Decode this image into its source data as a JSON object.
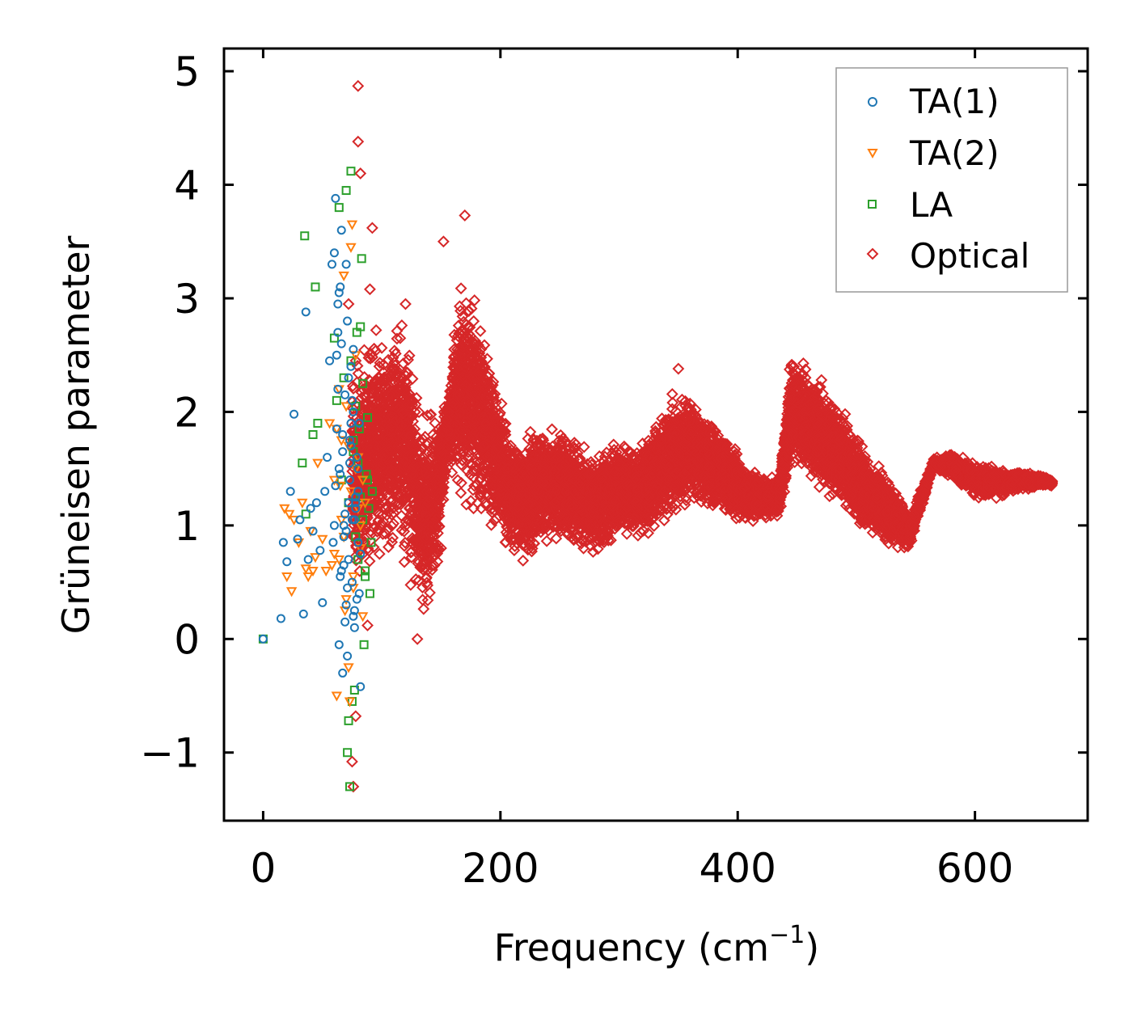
{
  "chart_data": {
    "type": "scatter",
    "xlabel": "Frequency (cm",
    "xlabel_sup": "−1",
    "xlabel_close": ")",
    "ylabel": "Grüneisen parameter",
    "xlim": [
      -33,
      695
    ],
    "ylim": [
      -1.6,
      5.2
    ],
    "xticks": [
      0,
      200,
      400,
      600
    ],
    "xtick_labels": [
      "0",
      "200",
      "400",
      "600"
    ],
    "yticks": [
      -1,
      0,
      1,
      2,
      3,
      4,
      5
    ],
    "ytick_labels": [
      "−1",
      "0",
      "1",
      "2",
      "3",
      "4",
      "5"
    ],
    "legend_position": "top-right",
    "series": [
      {
        "name": "TA(1)",
        "marker": "circle",
        "color": "#1f77b4",
        "x": [
          0,
          15,
          17,
          20,
          23,
          26,
          29,
          31,
          34,
          36,
          38,
          40,
          42,
          45,
          48,
          50,
          52,
          54,
          56,
          58,
          60,
          61,
          62,
          63,
          64,
          65,
          66,
          67,
          68,
          69,
          70,
          71,
          72,
          73,
          74,
          75,
          76,
          77,
          78,
          79,
          80,
          81,
          82,
          64,
          66,
          68,
          70,
          72,
          74,
          76,
          78,
          80,
          65,
          67,
          69,
          71,
          73,
          75,
          77,
          63,
          62,
          66,
          70,
          74,
          78,
          82,
          61,
          65,
          69,
          73,
          77,
          81,
          60,
          64,
          68,
          72,
          76,
          80,
          59,
          63,
          67,
          71,
          75,
          79
        ],
        "y": [
          0.0,
          0.18,
          0.85,
          0.68,
          1.3,
          1.98,
          0.88,
          1.05,
          0.22,
          2.88,
          0.7,
          1.15,
          0.95,
          1.2,
          0.78,
          0.32,
          1.3,
          1.6,
          2.45,
          3.3,
          3.4,
          3.88,
          2.5,
          2.2,
          1.5,
          3.1,
          2.6,
          1.8,
          0.9,
          1.1,
          3.3,
          2.8,
          2.3,
          1.4,
          1.9,
          0.5,
          0.2,
          0.1,
          1.2,
          1.6,
          1.3,
          0.4,
          -0.42,
          -0.05,
          0.6,
          1.0,
          0.3,
          0.7,
          1.7,
          2.0,
          1.25,
          0.85,
          1.45,
          -0.3,
          0.15,
          0.45,
          1.55,
          2.1,
          1.05,
          2.7,
          1.85,
          3.6,
          0.95,
          2.4,
          1.15,
          0.75,
          1.35,
          0.55,
          2.15,
          1.75,
          0.25,
          1.9,
          1.0,
          3.05,
          0.65,
          1.2,
          2.55,
          1.5,
          0.85,
          2.95,
          1.65,
          -0.15,
          1.05,
          0.35
        ]
      },
      {
        "name": "TA(2)",
        "marker": "triangle",
        "color": "#ff7f0e",
        "x": [
          18,
          20,
          22,
          24,
          26,
          30,
          33,
          36,
          38,
          40,
          42,
          44,
          46,
          50,
          53,
          56,
          58,
          60,
          62,
          64,
          66,
          68,
          70,
          72,
          74,
          76,
          78,
          80,
          82,
          84,
          86,
          62,
          66,
          70,
          74,
          78,
          82,
          64,
          68,
          72,
          76,
          80,
          84,
          73,
          75,
          60,
          65,
          69
        ],
        "y": [
          1.15,
          0.55,
          1.1,
          0.42,
          1.05,
          0.85,
          1.2,
          0.62,
          0.55,
          0.95,
          0.6,
          0.72,
          1.55,
          0.88,
          0.6,
          1.9,
          0.65,
          1.4,
          -0.5,
          0.7,
          1.75,
          3.2,
          2.05,
          -0.25,
          1.3,
          0.45,
          2.5,
          1.6,
          1.0,
          0.2,
          1.2,
          1.85,
          1.05,
          0.35,
          3.45,
          1.5,
          0.8,
          2.2,
          0.9,
          1.7,
          0.55,
          1.15,
          1.4,
          -0.55,
          3.65,
          0.75,
          1.35,
          0.25
        ]
      },
      {
        "name": "LA",
        "marker": "square",
        "color": "#2ca02c",
        "x": [
          0,
          33,
          35,
          36,
          42,
          44,
          46,
          60,
          62,
          64,
          66,
          68,
          70,
          72,
          74,
          76,
          78,
          80,
          82,
          84,
          86,
          88,
          90,
          92,
          71,
          72,
          73,
          75,
          77,
          79,
          81,
          83,
          85,
          87,
          89,
          91,
          74,
          76,
          78,
          80,
          82,
          84,
          86,
          88
        ],
        "y": [
          0.0,
          1.55,
          3.55,
          1.1,
          1.8,
          3.1,
          1.9,
          2.65,
          2.1,
          3.8,
          1.4,
          2.3,
          3.95,
          1.2,
          2.45,
          1.75,
          0.9,
          1.55,
          2.75,
          2.25,
          0.6,
          1.95,
          0.4,
          1.3,
          -1.0,
          -0.72,
          -1.3,
          -0.55,
          -0.45,
          2.7,
          1.85,
          3.35,
          -0.05,
          1.45,
          1.15,
          0.85,
          4.12,
          1.65,
          2.05,
          0.7,
          1.25,
          1.05,
          0.55,
          1.4
        ]
      },
      {
        "name": "Optical",
        "marker": "diamond",
        "color": "#d62728",
        "x_range": [
          70,
          665
        ],
        "generator_note": "dense envelope",
        "envelope": [
          [
            75,
            0.3,
            2.6
          ],
          [
            85,
            0.4,
            2.7
          ],
          [
            95,
            0.5,
            2.8
          ],
          [
            105,
            0.6,
            2.85
          ],
          [
            115,
            0.6,
            2.95
          ],
          [
            125,
            0.3,
            2.7
          ],
          [
            135,
            0.1,
            2.1
          ],
          [
            145,
            0.3,
            2.1
          ],
          [
            155,
            1.5,
            2.15
          ],
          [
            165,
            1.2,
            3.2
          ],
          [
            175,
            1.0,
            3.3
          ],
          [
            185,
            0.9,
            2.9
          ],
          [
            195,
            0.8,
            2.5
          ],
          [
            205,
            0.75,
            2.0
          ],
          [
            215,
            0.7,
            1.8
          ],
          [
            225,
            0.6,
            1.9
          ],
          [
            235,
            0.75,
            1.95
          ],
          [
            245,
            0.8,
            1.95
          ],
          [
            255,
            0.8,
            1.85
          ],
          [
            265,
            0.7,
            1.8
          ],
          [
            275,
            0.7,
            1.7
          ],
          [
            285,
            0.7,
            1.7
          ],
          [
            295,
            0.8,
            1.8
          ],
          [
            305,
            0.85,
            1.8
          ],
          [
            315,
            0.85,
            1.75
          ],
          [
            325,
            0.85,
            1.85
          ],
          [
            335,
            0.9,
            2.05
          ],
          [
            345,
            1.0,
            2.25
          ],
          [
            355,
            1.1,
            2.3
          ],
          [
            365,
            1.15,
            2.15
          ],
          [
            375,
            1.1,
            2.0
          ],
          [
            385,
            1.1,
            1.9
          ],
          [
            395,
            1.0,
            1.75
          ],
          [
            405,
            1.0,
            1.6
          ],
          [
            415,
            1.0,
            1.5
          ],
          [
            425,
            1.05,
            1.45
          ],
          [
            435,
            1.05,
            1.45
          ],
          [
            445,
            1.5,
            2.6
          ],
          [
            455,
            1.45,
            2.5
          ],
          [
            465,
            1.3,
            2.4
          ],
          [
            475,
            1.2,
            2.25
          ],
          [
            485,
            1.1,
            2.1
          ],
          [
            495,
            1.0,
            1.95
          ],
          [
            505,
            0.9,
            1.8
          ],
          [
            515,
            0.85,
            1.6
          ],
          [
            525,
            0.8,
            1.5
          ],
          [
            535,
            0.78,
            1.3
          ],
          [
            545,
            0.77,
            1.1
          ],
          [
            565,
            1.5,
            1.6
          ],
          [
            580,
            1.4,
            1.65
          ],
          [
            595,
            1.25,
            1.6
          ],
          [
            610,
            1.2,
            1.55
          ],
          [
            625,
            1.25,
            1.5
          ],
          [
            640,
            1.3,
            1.5
          ],
          [
            655,
            1.33,
            1.45
          ],
          [
            665,
            1.35,
            1.4
          ]
        ],
        "outliers_x": [
          80,
          80,
          82,
          92,
          75,
          76,
          78,
          72,
          90,
          88,
          170,
          152,
          130,
          150,
          120,
          350
        ],
        "outliers_y": [
          4.87,
          4.38,
          4.1,
          3.62,
          -1.08,
          -1.3,
          -0.68,
          2.95,
          3.08,
          0.12,
          3.73,
          3.5,
          0.0,
          0.8,
          2.95,
          2.38
        ]
      }
    ]
  }
}
